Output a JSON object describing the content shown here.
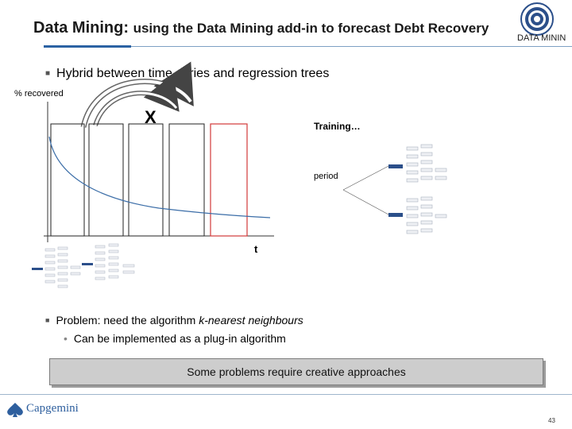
{
  "slide": {
    "title_lead": "Data Mining:",
    "title_rest": "using the Data Mining add-in to forecast Debt Recovery",
    "brand_text": "DATA MININ",
    "bullet_1": "Hybrid between time series and regression trees",
    "bullet_2_prefix": "Problem: need the algorithm ",
    "bullet_2_emph": "k-nearest neighbours",
    "sub_bullet": "Can be implemented as a plug-in algorithm",
    "callout": "Some problems require creative approaches",
    "company": "Capgemini",
    "page_number": "43"
  },
  "diagram": {
    "y_axis_label": "% recovered",
    "x_axis_label": "t",
    "window_marker": "X",
    "training_label": "Training…",
    "period_label": "period",
    "highlight_color": "#d23a3a",
    "curve_color": "#3c6ea8",
    "accent_color": "#2b4f8a"
  }
}
